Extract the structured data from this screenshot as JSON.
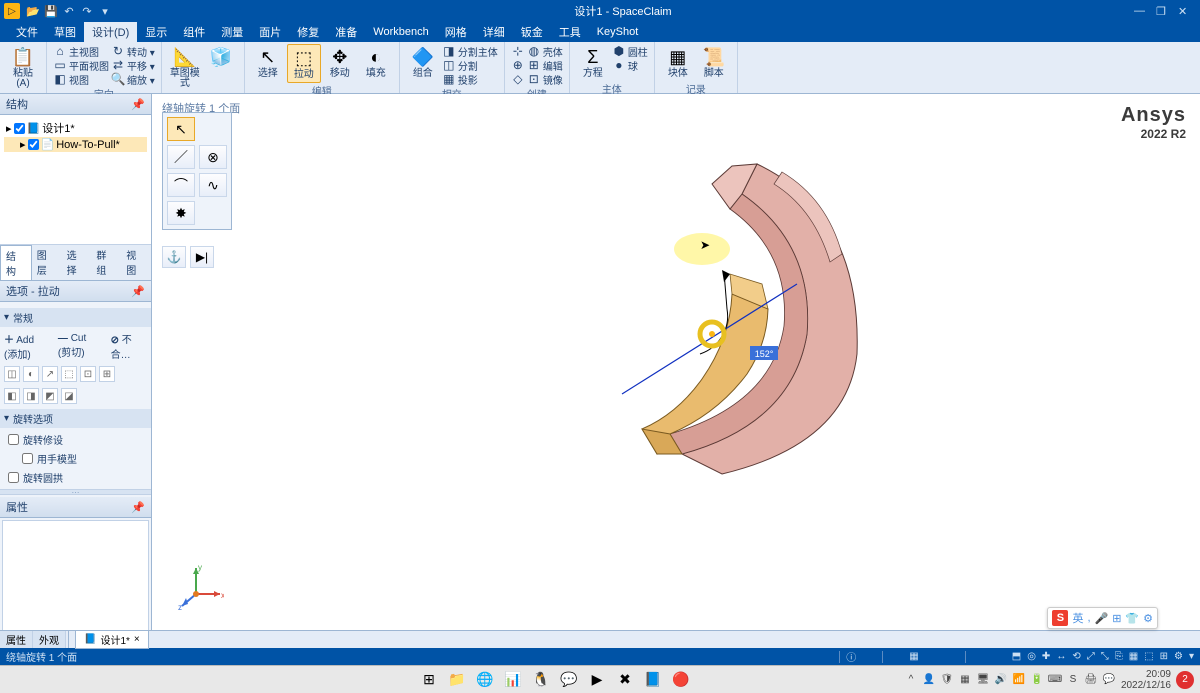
{
  "app": {
    "title": "设计1 - SpaceClaim"
  },
  "qat": [
    "📂",
    "💾",
    "↶",
    "↷",
    "▾"
  ],
  "winbtns": [
    "—",
    "❐",
    "✕"
  ],
  "menu": {
    "items": [
      "文件",
      "草图",
      "设计(D)",
      "显示",
      "组件",
      "测量",
      "面片",
      "修复",
      "准备",
      "Workbench",
      "网格",
      "详细",
      "钣金",
      "工具",
      "KeyShot"
    ],
    "active_index": 2
  },
  "ribbon": {
    "groups": [
      {
        "label": "剪贴板",
        "big": [
          {
            "icon": "📋",
            "t": "粘贴 (A)"
          }
        ],
        "cols": []
      },
      {
        "label": "定向",
        "cols": [
          [
            {
              "ic": "⌂",
              "t": "主视图"
            },
            {
              "ic": "▭",
              "t": "平面视图"
            },
            {
              "ic": "◧",
              "t": "视图"
            }
          ],
          [
            {
              "ic": "↻",
              "t": "转动 ▾"
            },
            {
              "ic": "⇄",
              "t": "平移 ▾"
            },
            {
              "ic": "🔍",
              "t": "缩放 ▾"
            }
          ]
        ]
      },
      {
        "label": "模式",
        "big": [
          {
            "icon": "📐",
            "t": "草图模式"
          },
          {
            "icon": "🧊",
            "t": ""
          }
        ]
      },
      {
        "label": "编辑",
        "big": [
          {
            "icon": "↖",
            "t": "选择"
          },
          {
            "icon": "⬚",
            "t": "拉动",
            "sel": true
          },
          {
            "icon": "✥",
            "t": "移动"
          },
          {
            "icon": "◐",
            "t": "填充"
          }
        ],
        "cols": []
      },
      {
        "label": "相交",
        "big": [
          {
            "icon": "🔷",
            "t": "组合"
          }
        ],
        "cols": [
          [
            {
              "ic": "◨",
              "t": "分割主体"
            },
            {
              "ic": "◫",
              "t": "分割"
            },
            {
              "ic": "▦",
              "t": "投影"
            }
          ]
        ]
      },
      {
        "label": "创建",
        "cols": [
          [
            {
              "ic": "⊹",
              "t": ""
            },
            {
              "ic": "⊕",
              "t": ""
            },
            {
              "ic": "◇",
              "t": ""
            }
          ],
          [
            {
              "ic": "◍",
              "t": "壳体"
            },
            {
              "ic": "⊞",
              "t": "编辑"
            },
            {
              "ic": "⊡",
              "t": "镜像"
            }
          ]
        ]
      },
      {
        "label": "主体",
        "big": [
          {
            "icon": "Σ",
            "t": "方程"
          }
        ],
        "cols": [
          [
            {
              "ic": "⬢",
              "t": "圆柱"
            },
            {
              "ic": "●",
              "t": "球"
            }
          ]
        ]
      },
      {
        "label": "记录",
        "big": [
          {
            "icon": "▦",
            "t": "块体"
          },
          {
            "icon": "📜",
            "t": "脚本"
          }
        ]
      }
    ]
  },
  "structure_panel": {
    "title": "结构",
    "nodes": [
      {
        "indent": 0,
        "icon": "📘",
        "label": "设计1*",
        "check": true
      },
      {
        "indent": 1,
        "icon": "📄",
        "label": "How-To-Pull*",
        "check": true,
        "hl": true
      }
    ],
    "tabs": [
      "结构",
      "图层",
      "选择",
      "群组",
      "视图"
    ],
    "tabs_active": 0
  },
  "options_panel": {
    "title": "选项 - 拉动",
    "general": "常规",
    "rows": [
      {
        "ic": "＋",
        "t": "Add (添加)"
      },
      {
        "ic": "—",
        "t": "Cut (剪切)"
      },
      {
        "ic": "⊘",
        "t": "不合…"
      }
    ],
    "section": "旋转选项",
    "checks": [
      {
        "t": "旋转修设",
        "c": false
      },
      {
        "t": "用手模型",
        "c": false,
        "sub": true
      },
      {
        "t": "旋转圆拱",
        "c": false
      }
    ]
  },
  "props_panel": {
    "title": "属性"
  },
  "bottom_tabs_left": [
    "属性",
    "外观"
  ],
  "viewport": {
    "hint": "绕轴旋转 1 个面",
    "angle_label": "152°",
    "brand": {
      "l1": "Ansys",
      "l2": "2022 R2"
    },
    "triad_labels": {
      "x": "x",
      "y": "y",
      "z": "z"
    }
  },
  "doc_tab": "设计1*",
  "status": {
    "left": "绕轴旋转 1 个面",
    "icons": [
      "⬒",
      "◎",
      "✚",
      "↔",
      "⟲",
      "⤢",
      "⤡",
      "⎘",
      "▦",
      "⬚",
      "⊞",
      "⚙",
      "▾"
    ]
  },
  "ime": {
    "logo": "S",
    "chars": [
      "英",
      ",",
      "🎤",
      "⊞",
      "👕",
      "⚙"
    ]
  },
  "taskbar": {
    "apps": [
      "⊞",
      "📁",
      "🌐",
      "📊",
      "🐧",
      "💬",
      "▶",
      "✖",
      "📘",
      "🔴"
    ],
    "tray": [
      "^",
      "👤",
      "🛡",
      "▦",
      "🖥",
      "🔊",
      "📶",
      "🔋",
      "⌨",
      "S",
      "🖨",
      "💬"
    ],
    "time": "20:09",
    "date": "2022/12/16",
    "notif": "2"
  },
  "colors": {
    "accent": "#0053a6",
    "ribbon": "#e4ecf7",
    "model_main": "#e2b0a8",
    "model_cut": "#e9bb6e",
    "axis_x": "#d94a3a",
    "axis_y": "#49a84c",
    "axis_z": "#3a70d9"
  }
}
